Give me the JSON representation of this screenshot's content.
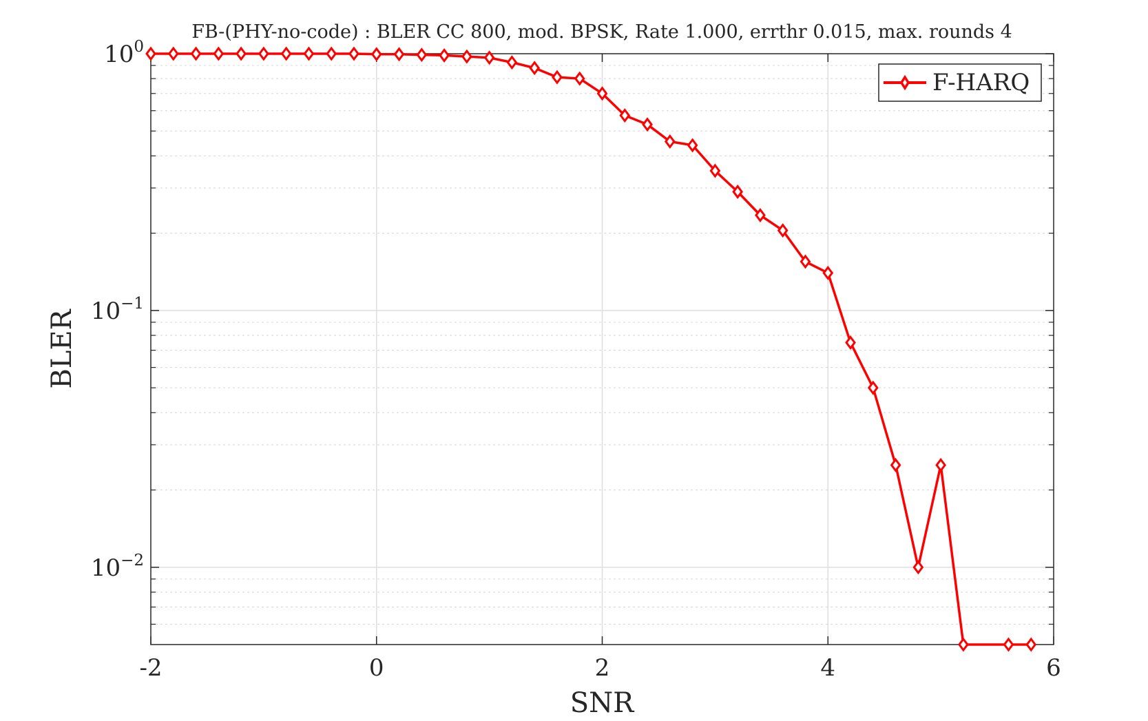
{
  "chart_data": {
    "type": "line",
    "title": "FB-(PHY-no-code) : BLER CC 800, mod. BPSK, Rate 1.000, errthr 0.015, max. rounds 4",
    "xlabel": "SNR",
    "ylabel": "BLER",
    "xlim": [
      -2,
      6
    ],
    "ylim": [
      0.005,
      1
    ],
    "yscale": "log",
    "x_ticks": [
      -2,
      0,
      2,
      4,
      6
    ],
    "x_tick_labels": [
      "-2",
      "0",
      "2",
      "4",
      "6"
    ],
    "y_ticks": [
      0.01,
      0.1,
      1
    ],
    "y_tick_labels": [
      {
        "base": "10",
        "exp": "−2"
      },
      {
        "base": "10",
        "exp": "−1"
      },
      {
        "base": "10",
        "exp": "0"
      }
    ],
    "grid": true,
    "minor_grid": true,
    "legend_position": "top-right",
    "series": [
      {
        "name": "F-HARQ",
        "color": "#ff0000",
        "marker": "diamond",
        "x": [
          -2.0,
          -1.8,
          -1.6,
          -1.4,
          -1.2,
          -1.0,
          -0.8,
          -0.6,
          -0.4,
          -0.2,
          0.0,
          0.2,
          0.4,
          0.6,
          0.8,
          1.0,
          1.2,
          1.4,
          1.6,
          1.8,
          2.0,
          2.2,
          2.4,
          2.6,
          2.8,
          3.0,
          3.2,
          3.4,
          3.6,
          3.8,
          4.0,
          4.2,
          4.4,
          4.6,
          4.8,
          5.0,
          5.2,
          5.6,
          5.8
        ],
        "y": [
          1.0,
          1.0,
          1.0,
          1.0,
          1.0,
          1.0,
          1.0,
          1.0,
          1.0,
          1.0,
          0.995,
          0.995,
          0.99,
          0.985,
          0.975,
          0.965,
          0.925,
          0.88,
          0.81,
          0.8,
          0.7,
          0.575,
          0.53,
          0.455,
          0.44,
          0.35,
          0.29,
          0.235,
          0.205,
          0.155,
          0.14,
          0.075,
          0.05,
          0.025,
          0.01,
          0.025,
          0.005,
          0.005,
          0.005
        ]
      }
    ]
  }
}
